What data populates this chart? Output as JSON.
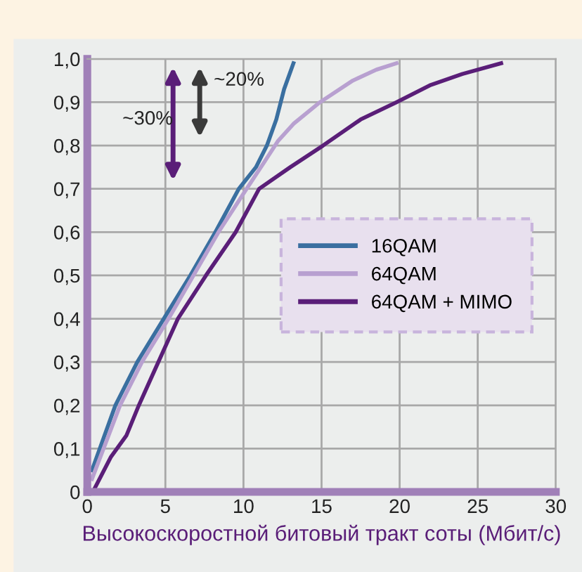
{
  "chart_data": {
    "type": "line",
    "xlabel": "Высокоскоростной битовый тракт соты (Мбит/с)",
    "xlim": [
      0,
      30
    ],
    "ylim": [
      0,
      1.0
    ],
    "xticks": [
      0,
      5,
      10,
      15,
      20,
      25,
      30
    ],
    "yticks": [
      {
        "value": 0,
        "label": "0"
      },
      {
        "value": 0.1,
        "label": "0,1"
      },
      {
        "value": 0.2,
        "label": "0,2"
      },
      {
        "value": 0.3,
        "label": "0,3"
      },
      {
        "value": 0.4,
        "label": "0,4"
      },
      {
        "value": 0.5,
        "label": "0,5"
      },
      {
        "value": 0.6,
        "label": "0,6"
      },
      {
        "value": 0.7,
        "label": "0,7"
      },
      {
        "value": 0.8,
        "label": "0,8"
      },
      {
        "value": 0.9,
        "label": "0,9"
      },
      {
        "value": 1.0,
        "label": "1,0"
      }
    ],
    "grid": true,
    "legend": "right",
    "marker": "none",
    "line_style": "solid",
    "annotations": [
      "~30%",
      "~20%"
    ],
    "series": [
      {
        "name": "16QAM",
        "color": "#3a6fa0",
        "x": [
          0.3,
          1.8,
          3.2,
          4.9,
          6.6,
          8.2,
          9.7,
          10.8,
          11.5,
          12.1,
          12.6,
          13.2
        ],
        "values": [
          0.05,
          0.2,
          0.3,
          0.4,
          0.5,
          0.6,
          0.7,
          0.75,
          0.8,
          0.86,
          0.93,
          0.99
        ]
      },
      {
        "name": "64QAM",
        "color": "#b8a0d0",
        "x": [
          0.3,
          2.1,
          3.5,
          5.2,
          6.8,
          8.4,
          10.2,
          11.3,
          12.2,
          13.2,
          14.9,
          17.0,
          18.5,
          19.8
        ],
        "values": [
          0.03,
          0.2,
          0.3,
          0.4,
          0.5,
          0.6,
          0.7,
          0.76,
          0.81,
          0.85,
          0.9,
          0.95,
          0.975,
          0.99
        ]
      },
      {
        "name": "64QAM + MIMO",
        "color": "#5a1e78",
        "x": [
          0.5,
          1.5,
          2.5,
          3.3,
          4.3,
          5.8,
          7.6,
          9.5,
          11.0,
          13.0,
          15.1,
          17.5,
          19.8,
          22.0,
          24.0,
          26.5
        ],
        "values": [
          0.01,
          0.08,
          0.13,
          0.2,
          0.28,
          0.4,
          0.5,
          0.6,
          0.7,
          0.75,
          0.8,
          0.86,
          0.9,
          0.94,
          0.965,
          0.99
        ]
      }
    ]
  }
}
